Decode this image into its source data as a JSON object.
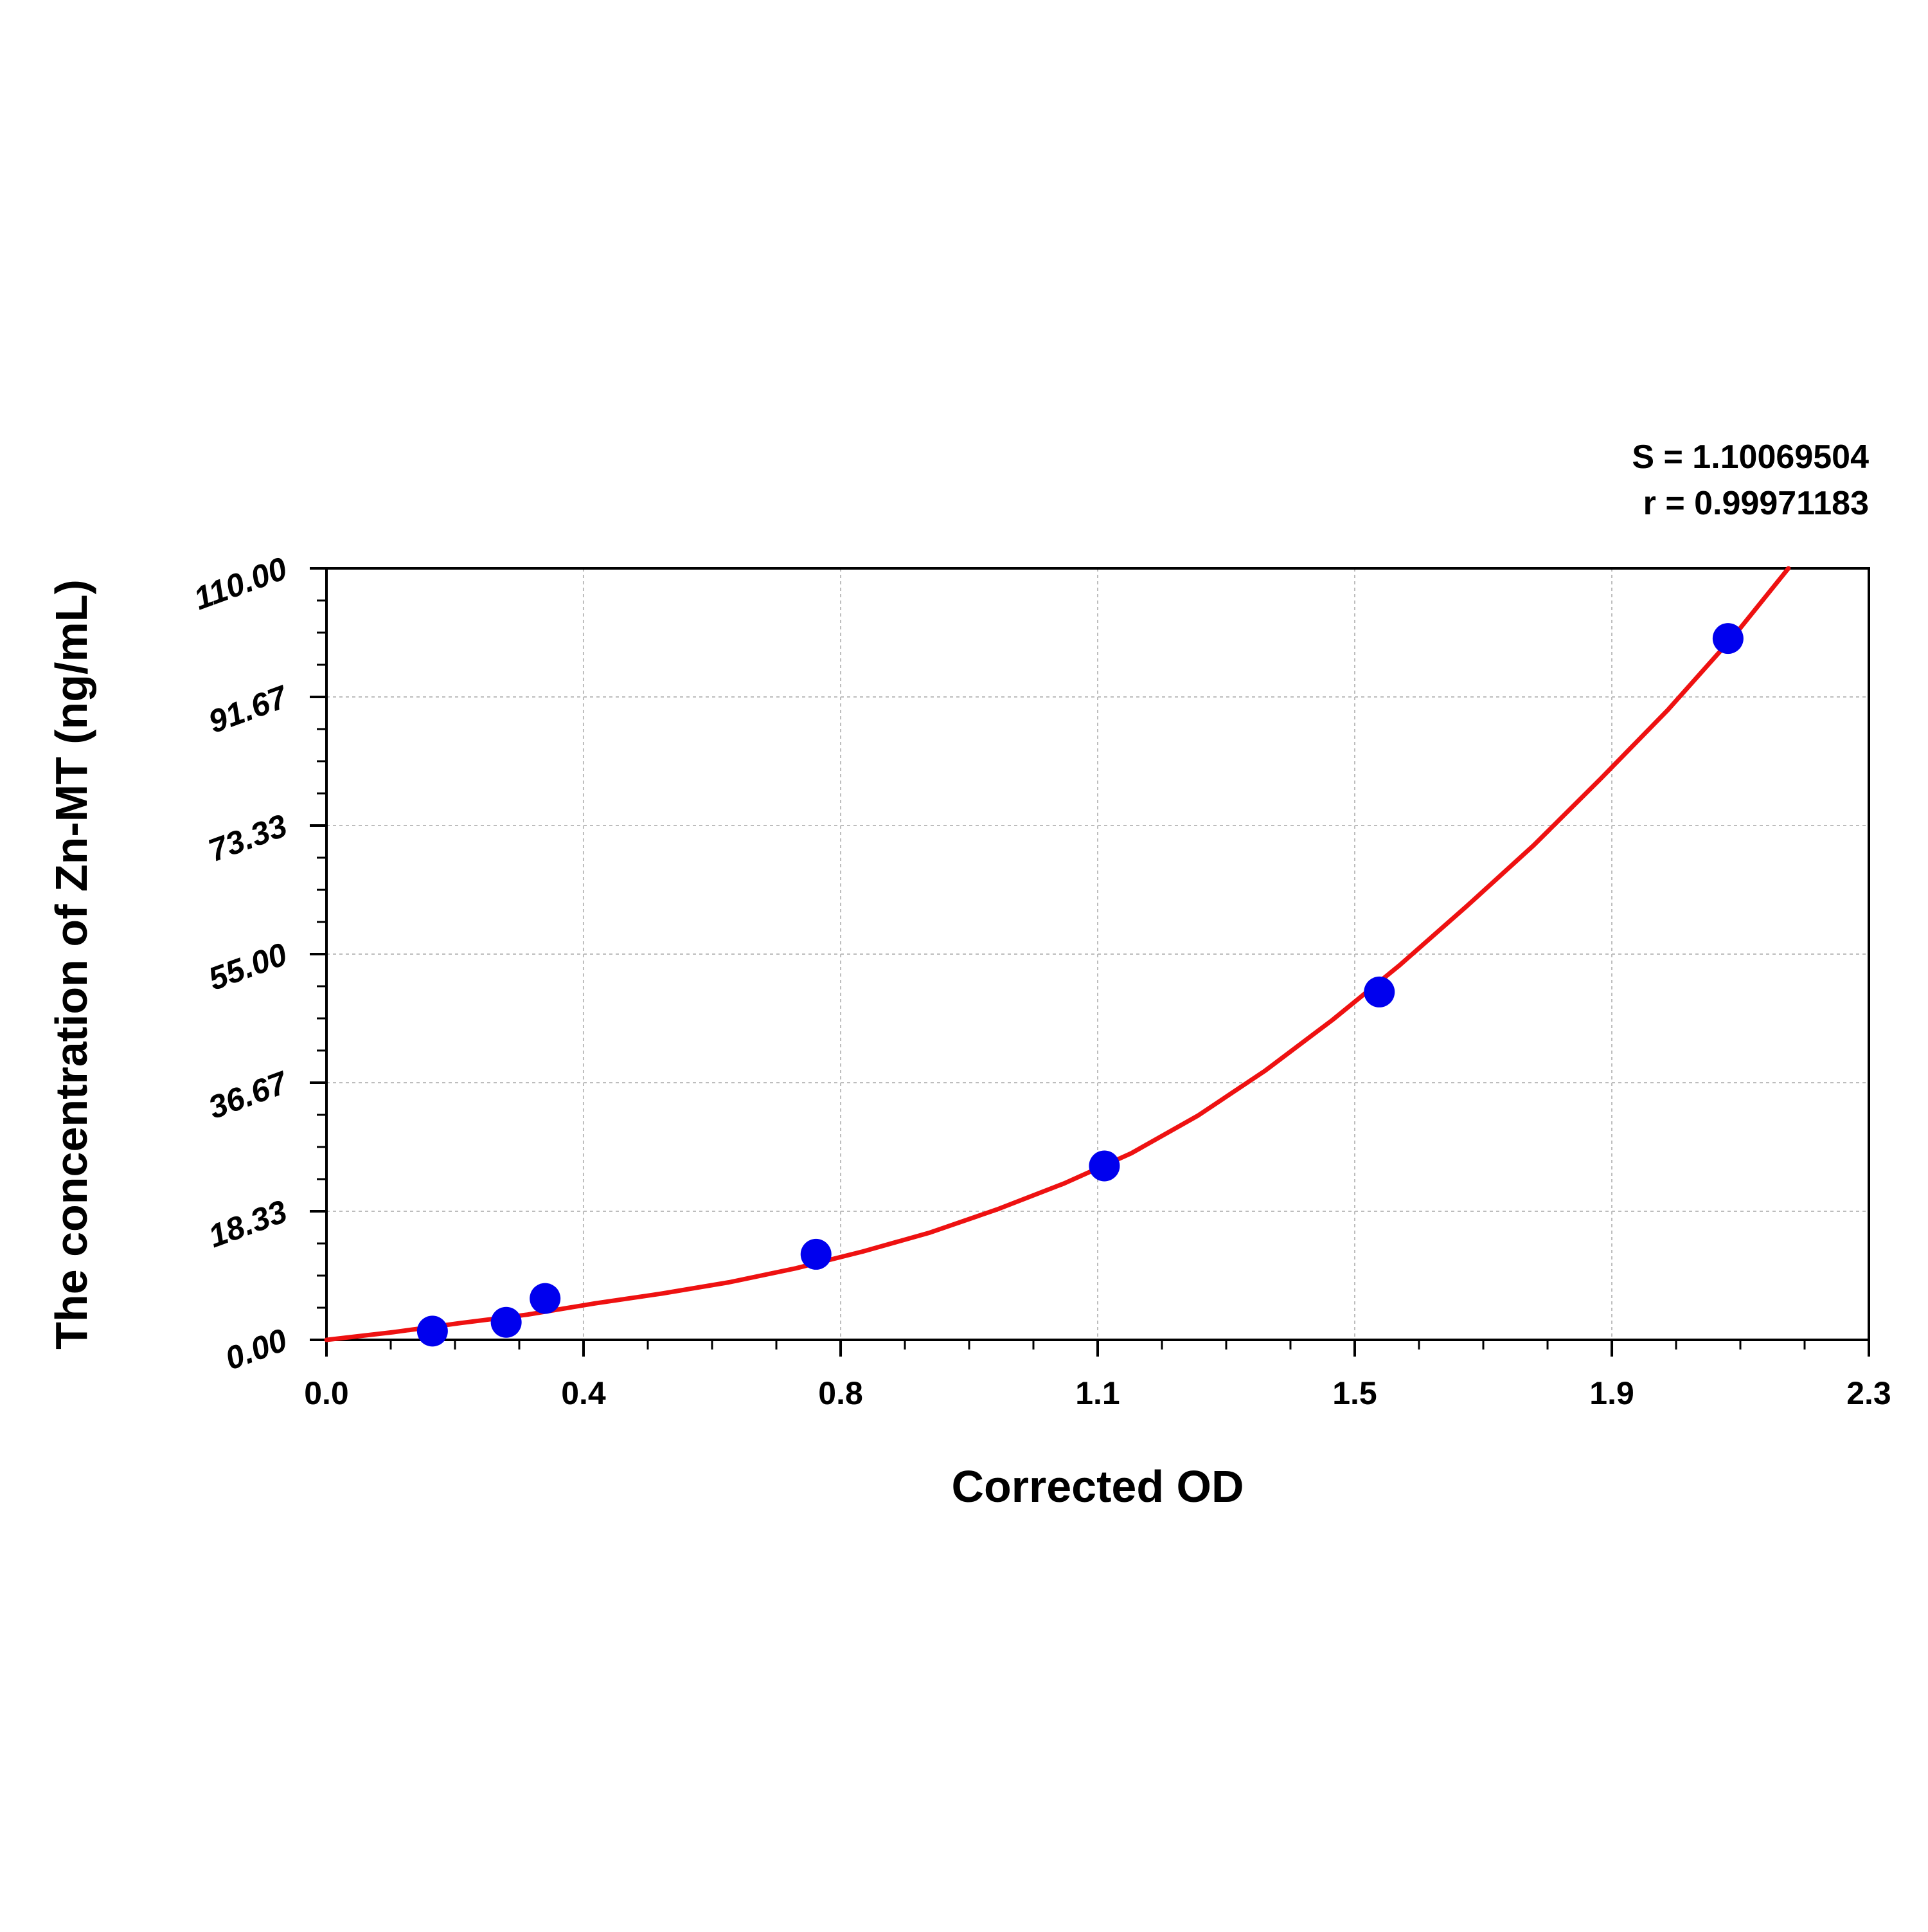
{
  "chart_data": {
    "type": "scatter",
    "xlabel": "Corrected OD",
    "ylabel": "The concentration of Zn-MT (ng/mL)",
    "stats": {
      "s_label": "S = 1.10069504",
      "r_label": "r = 0.99971183"
    },
    "xlim": [
      0.0,
      2.3
    ],
    "ylim": [
      0.0,
      110.0
    ],
    "x_ticks": [
      "0.0",
      "0.4",
      "0.8",
      "1.1",
      "1.5",
      "1.9",
      "2.3"
    ],
    "x_tick_values": [
      0.0,
      0.3833,
      0.7667,
      1.15,
      1.5333,
      1.9167,
      2.3
    ],
    "y_ticks": [
      "0.00",
      "18.33",
      "36.67",
      "55.00",
      "73.33",
      "91.67",
      "110.00"
    ],
    "y_tick_values": [
      0.0,
      18.33,
      36.67,
      55.0,
      73.33,
      91.67,
      110.0
    ],
    "grid": true,
    "series": [
      {
        "kind": "points",
        "color": "#0000ee",
        "x": [
          0.158,
          0.268,
          0.326,
          0.73,
          1.16,
          1.57,
          2.09
        ],
        "y": [
          1.25,
          2.5,
          5.9,
          12.2,
          24.8,
          49.6,
          100.0
        ]
      },
      {
        "kind": "fit-curve",
        "color": "#ee1111",
        "x": [
          0.0,
          0.1,
          0.2,
          0.3,
          0.4,
          0.5,
          0.6,
          0.7,
          0.8,
          0.9,
          1.0,
          1.1,
          1.2,
          1.3,
          1.4,
          1.5,
          1.6,
          1.7,
          1.8,
          1.9,
          2.0,
          2.1,
          2.18
        ],
        "y": [
          0.0,
          1.1,
          2.4,
          3.6,
          5.2,
          6.6,
          8.2,
          10.2,
          12.6,
          15.3,
          18.6,
          22.3,
          26.6,
          32.0,
          38.4,
          45.6,
          53.4,
          61.8,
          70.5,
          80.0,
          89.8,
          100.5,
          110.0
        ]
      }
    ]
  }
}
